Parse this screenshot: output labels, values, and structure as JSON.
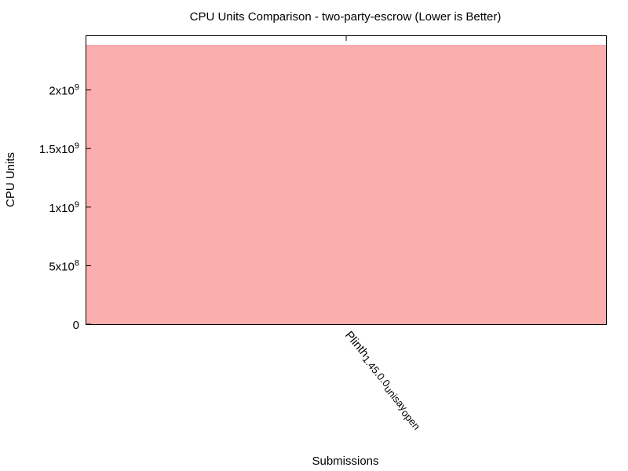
{
  "chart_data": {
    "type": "bar",
    "title": "CPU Units Comparison - two-party-escrow (Lower is Better)",
    "xlabel": "Submissions",
    "ylabel": "CPU Units",
    "categories": [
      "Plinth_1.45.0.0_unisay_open"
    ],
    "series": [
      {
        "values": [
          2380000000
        ],
        "color": "#fbaeae"
      }
    ],
    "ylim": [
      0,
      2460000000
    ],
    "yticks": [
      {
        "value": 0,
        "label": "0",
        "mant": "",
        "exp": ""
      },
      {
        "value": 500000000,
        "label": "5x10^8",
        "mant": "5x10",
        "exp": "8"
      },
      {
        "value": 1000000000,
        "label": "1x10^9",
        "mant": "1x10",
        "exp": "9"
      },
      {
        "value": 1500000000,
        "label": "1.5x10^9",
        "mant": "1.5x10",
        "exp": "9"
      },
      {
        "value": 2000000000,
        "label": "2x10^9",
        "mant": "2x10",
        "exp": "9"
      }
    ],
    "grid": false,
    "legend": "none"
  }
}
